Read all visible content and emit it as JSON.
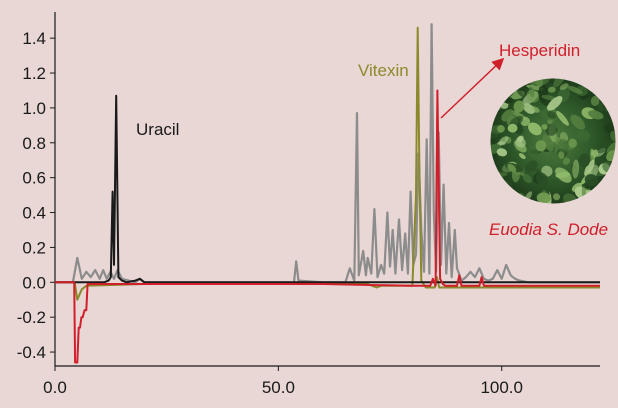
{
  "chart_data": {
    "type": "line",
    "title": "",
    "xlabel": "",
    "ylabel": "",
    "xlim": [
      0,
      122
    ],
    "ylim": [
      -0.48,
      1.55
    ],
    "x_ticks": [
      0,
      50,
      100
    ],
    "x_tick_labels": [
      "0.0",
      "50.0",
      "100.0"
    ],
    "y_ticks": [
      -0.4,
      -0.2,
      0.0,
      0.2,
      0.4,
      0.6,
      0.8,
      1.0,
      1.2,
      1.4
    ],
    "y_tick_labels": [
      "-0.4",
      "-0.2",
      "0.0",
      "0.2",
      "0.4",
      "0.6",
      "0.8",
      "1.0",
      "1.2",
      "1.4"
    ],
    "grid": false,
    "series": [
      {
        "color": "#8c8c8c",
        "x": [
          0,
          4,
          5,
          6,
          7,
          8,
          9,
          10,
          10.8,
          11.6,
          12.4,
          13.2,
          14,
          15,
          18,
          19,
          20,
          30,
          40,
          45,
          50,
          53.5,
          54,
          54.5,
          60,
          65,
          66,
          67,
          67.6,
          68,
          69,
          69.6,
          70,
          70.8,
          71.5,
          72.2,
          73,
          73.7,
          74.4,
          75,
          75.6,
          76.2,
          77,
          77.7,
          78.4,
          79,
          79.6,
          80.2,
          80.8,
          81.4,
          82,
          82.6,
          83.2,
          83.8,
          84.3,
          84.8,
          85.3,
          85.9,
          86.4,
          87,
          87.6,
          88.2,
          88.8,
          89.5,
          90,
          91,
          92,
          93,
          94,
          95,
          96,
          97,
          98,
          99,
          100,
          101,
          102,
          103,
          104,
          106,
          110,
          115,
          122
        ],
        "y": [
          0,
          0,
          0.14,
          0.02,
          0.06,
          0.03,
          0.07,
          0.02,
          0.07,
          0.02,
          0.06,
          0.02,
          0.07,
          0.02,
          0,
          0.02,
          0,
          0,
          0,
          0,
          0,
          0,
          0.12,
          0.01,
          0,
          0,
          0.08,
          0.01,
          0.97,
          0.04,
          0.18,
          0.04,
          0.14,
          0.05,
          0.42,
          0.03,
          0.1,
          0.05,
          0.4,
          0.09,
          0.3,
          0.05,
          0.36,
          0.07,
          0.28,
          0.05,
          0.52,
          0.1,
          0.16,
          0.74,
          0.3,
          0.06,
          0.82,
          0.05,
          1.48,
          0.4,
          0.06,
          0.86,
          0.1,
          0.56,
          0.05,
          0.34,
          0.03,
          0.3,
          0.08,
          0.01,
          0.03,
          0.06,
          0.03,
          0.08,
          0.02,
          0.01,
          0.02,
          0.07,
          0.02,
          0.1,
          0.04,
          0.02,
          0.01,
          0,
          0,
          0,
          0
        ]
      },
      {
        "color": "#8a8a2c",
        "x": [
          0,
          4.4,
          5,
          6,
          7,
          20,
          60,
          70,
          71,
          72,
          73,
          80,
          80.8,
          81.2,
          81.6,
          82,
          83,
          85,
          85.5,
          86,
          87,
          95,
          105,
          122
        ],
        "y": [
          0,
          0,
          -0.1,
          -0.04,
          -0.02,
          -0.01,
          -0.01,
          -0.01,
          -0.02,
          -0.03,
          -0.02,
          -0.02,
          0.5,
          1.46,
          0.6,
          0.01,
          -0.03,
          -0.03,
          0.03,
          -0.03,
          -0.03,
          -0.03,
          -0.03,
          -0.03
        ]
      },
      {
        "color": "#1a1a1a",
        "x": [
          0,
          10,
          11,
          12,
          12.5,
          12.9,
          13.2,
          13.7,
          14.2,
          15,
          16,
          18,
          19,
          20,
          122
        ],
        "y": [
          0,
          0,
          0,
          0.01,
          0.03,
          0.52,
          0.1,
          1.07,
          0.03,
          0.01,
          0,
          0.01,
          0.02,
          0,
          0
        ]
      },
      {
        "color": "#d01f2b",
        "x": [
          0,
          4.3,
          4.5,
          5,
          5.3,
          5.6,
          5.9,
          6.2,
          6.6,
          7,
          7.3,
          8,
          15,
          40,
          60,
          80,
          84,
          84.6,
          85.2,
          85.6,
          86.2,
          86.8,
          87.4,
          88,
          89,
          90,
          90.5,
          91,
          92,
          93,
          94,
          95,
          95.5,
          96,
          97,
          100,
          110,
          122
        ],
        "y": [
          0,
          0,
          -0.46,
          -0.46,
          -0.26,
          -0.26,
          -0.2,
          -0.2,
          -0.16,
          -0.16,
          -0.01,
          -0.01,
          -0.01,
          -0.01,
          -0.01,
          -0.02,
          -0.02,
          0.02,
          -0.02,
          1.1,
          0.02,
          -0.01,
          -0.02,
          -0.02,
          -0.02,
          -0.02,
          0.04,
          -0.02,
          -0.02,
          -0.02,
          -0.02,
          -0.02,
          0.03,
          -0.02,
          -0.02,
          -0.02,
          -0.02,
          -0.02
        ]
      }
    ],
    "annotations": [
      {
        "text": "Uracil",
        "color": "#1a1a1a"
      },
      {
        "text": "Vitexin",
        "color": "#8a8a2c"
      },
      {
        "text": "Hesperidin",
        "color": "#d01f2b"
      },
      {
        "text": "Euodia S. Dode",
        "color": "#d01f2b"
      }
    ]
  }
}
